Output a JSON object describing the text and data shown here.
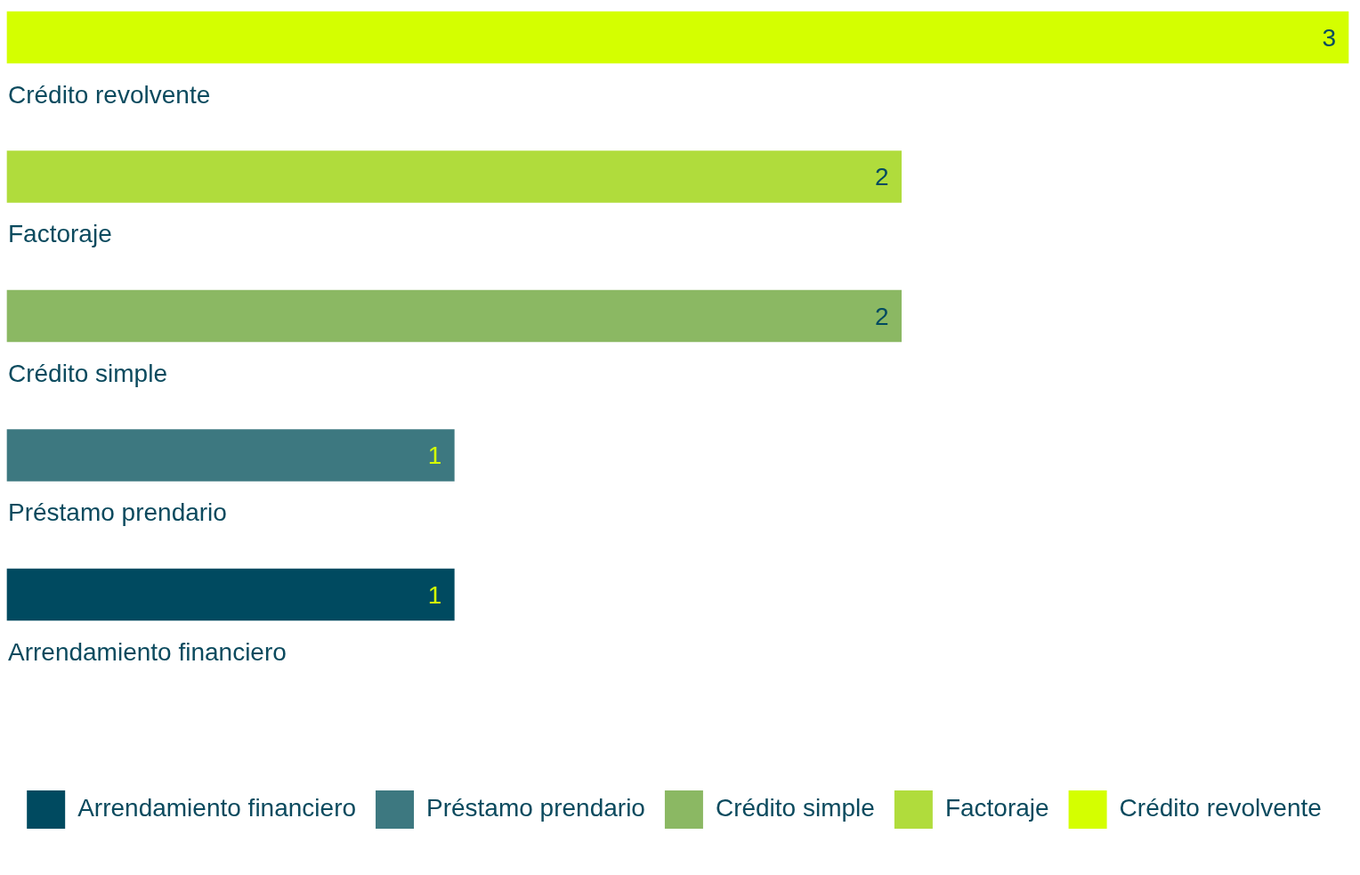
{
  "chart_data": {
    "type": "bar",
    "orientation": "horizontal",
    "stacked": true,
    "categories": [
      "Crédito revolvente",
      "Factoraje",
      "Crédito simple",
      "Préstamo prendario",
      "Arrendamiento financiero"
    ],
    "series": [
      {
        "name": "Arrendamiento financiero",
        "color": "#004a60",
        "values": [
          null,
          null,
          null,
          null,
          1
        ]
      },
      {
        "name": "Préstamo prendario",
        "color": "#3d7880",
        "values": [
          null,
          null,
          null,
          1,
          null
        ]
      },
      {
        "name": "Crédito simple",
        "color": "#8bb863",
        "values": [
          null,
          null,
          2,
          null,
          null
        ]
      },
      {
        "name": "Factoraje",
        "color": "#b0dc3c",
        "values": [
          null,
          2,
          null,
          null,
          null
        ]
      },
      {
        "name": "Crédito revolvente",
        "color": "#d4ff00",
        "values": [
          3,
          null,
          null,
          null,
          null
        ]
      }
    ],
    "data_labels": true,
    "grid": false,
    "legend": "bottom"
  }
}
